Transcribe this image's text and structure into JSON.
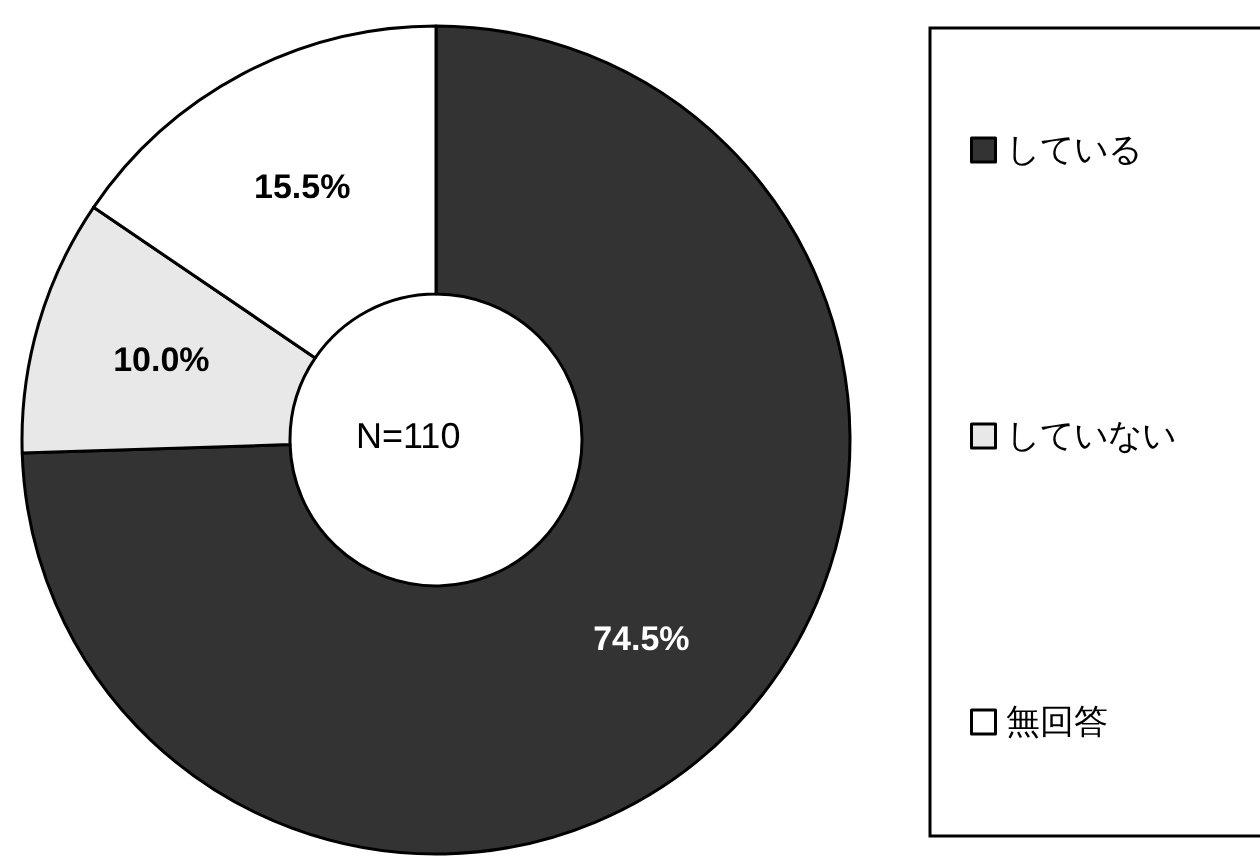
{
  "chart_data": {
    "type": "donut",
    "categories": [
      "している",
      "していない",
      "無回答"
    ],
    "values": [
      74.5,
      10.0,
      15.5
    ],
    "colors": [
      "#333333",
      "#e8e8e8",
      "#ffffff"
    ],
    "value_labels": [
      "74.5%",
      "10.0%",
      "15.5%"
    ],
    "annotations": [
      "N=110"
    ],
    "legend": "right"
  }
}
